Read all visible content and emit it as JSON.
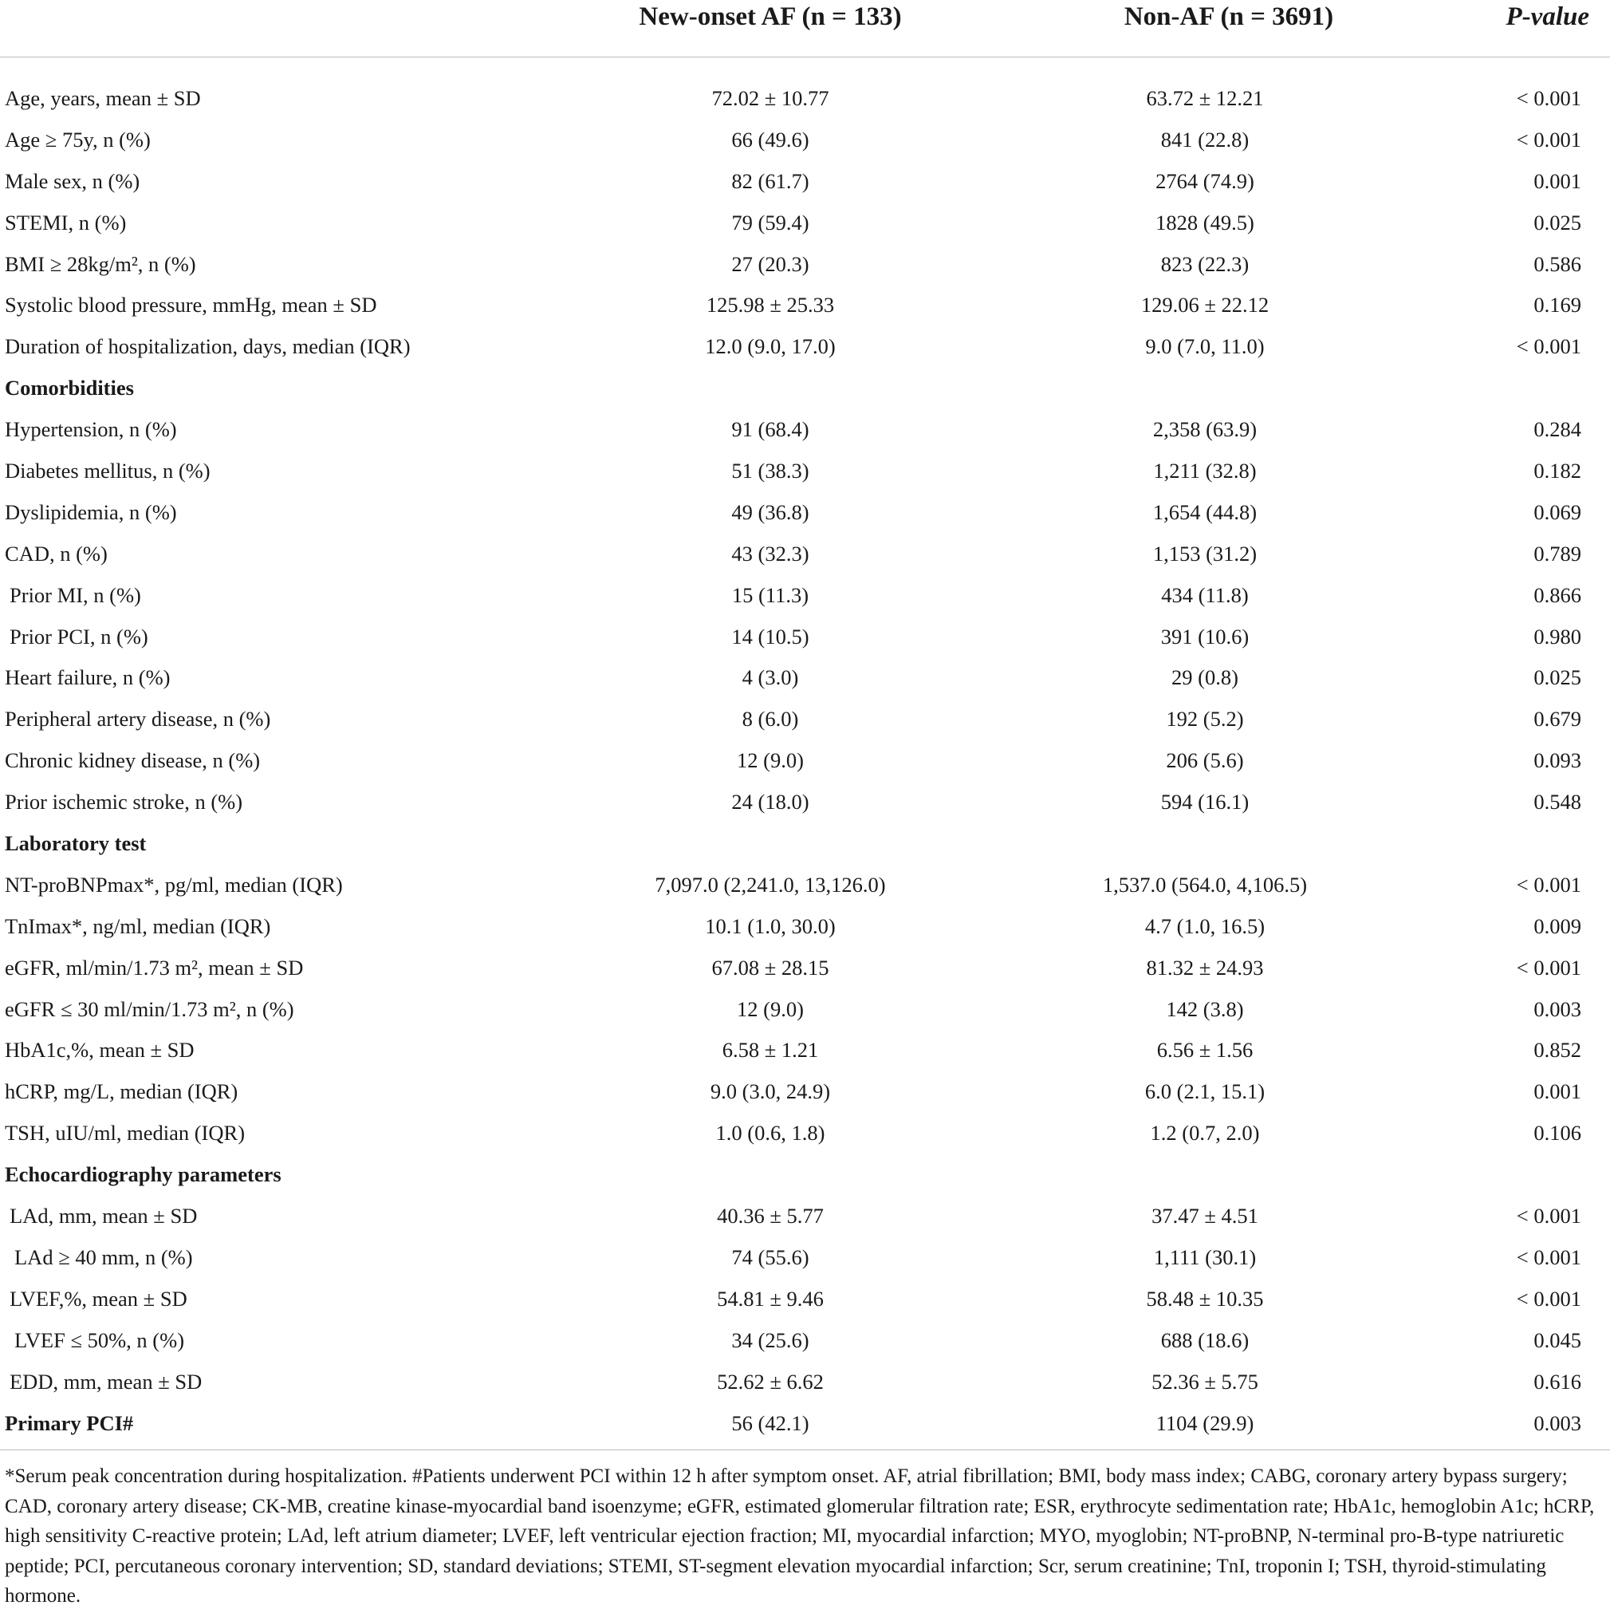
{
  "header": {
    "col_af": "New-onset AF (n = 133)",
    "col_non": "Non-AF (n = 3691)",
    "col_p": "P-value"
  },
  "rows": [
    {
      "label": "Age, years, mean ± SD",
      "af": "72.02 ± 10.77",
      "non": "63.72 ± 12.21",
      "p": "< 0.001"
    },
    {
      "label": "Age ≥ 75y, n (%)",
      "af": "66 (49.6)",
      "non": "841 (22.8)",
      "p": "< 0.001"
    },
    {
      "label": "Male sex, n (%)",
      "af": "82 (61.7)",
      "non": "2764 (74.9)",
      "p": "0.001"
    },
    {
      "label": "STEMI, n (%)",
      "af": "79 (59.4)",
      "non": "1828 (49.5)",
      "p": "0.025"
    },
    {
      "label": "BMI ≥ 28kg/m², n (%)",
      "af": "27 (20.3)",
      "non": "823 (22.3)",
      "p": "0.586"
    },
    {
      "label": "Systolic blood pressure, mmHg, mean ± SD",
      "af": "125.98 ± 25.33",
      "non": "129.06 ± 22.12",
      "p": "0.169"
    },
    {
      "label": "Duration of hospitalization, days, median (IQR)",
      "af": "12.0 (9.0, 17.0)",
      "non": "9.0 (7.0, 11.0)",
      "p": "< 0.001"
    },
    {
      "label": "Comorbidities",
      "af": "",
      "non": "",
      "p": "",
      "section": true
    },
    {
      "label": "Hypertension, n (%)",
      "af": "91 (68.4)",
      "non": "2,358 (63.9)",
      "p": "0.284"
    },
    {
      "label": "Diabetes mellitus, n (%)",
      "af": "51 (38.3)",
      "non": "1,211 (32.8)",
      "p": "0.182"
    },
    {
      "label": "Dyslipidemia, n (%)",
      "af": "49 (36.8)",
      "non": "1,654 (44.8)",
      "p": "0.069"
    },
    {
      "label": "CAD, n (%)",
      "af": "43 (32.3)",
      "non": "1,153 (31.2)",
      "p": "0.789"
    },
    {
      "label": "Prior MI, n (%)",
      "af": "15 (11.3)",
      "non": "434 (11.8)",
      "p": "0.866",
      "indent": 1
    },
    {
      "label": "Prior PCI, n (%)",
      "af": "14 (10.5)",
      "non": "391 (10.6)",
      "p": "0.980",
      "indent": 1
    },
    {
      "label": "Heart failure, n (%)",
      "af": "4 (3.0)",
      "non": "29 (0.8)",
      "p": "0.025"
    },
    {
      "label": "Peripheral artery disease, n (%)",
      "af": "8 (6.0)",
      "non": "192 (5.2)",
      "p": "0.679"
    },
    {
      "label": "Chronic kidney disease, n (%)",
      "af": "12 (9.0)",
      "non": "206 (5.6)",
      "p": "0.093"
    },
    {
      "label": "Prior ischemic stroke, n (%)",
      "af": "24 (18.0)",
      "non": "594 (16.1)",
      "p": "0.548"
    },
    {
      "label": "Laboratory test",
      "af": "",
      "non": "",
      "p": "",
      "section": true
    },
    {
      "label": "NT-proBNPmax*, pg/ml, median (IQR)",
      "af": "7,097.0 (2,241.0, 13,126.0)",
      "non": "1,537.0 (564.0, 4,106.5)",
      "p": "< 0.001"
    },
    {
      "label": "TnImax*, ng/ml, median (IQR)",
      "af": "10.1 (1.0, 30.0)",
      "non": "4.7 (1.0, 16.5)",
      "p": "0.009"
    },
    {
      "label": "eGFR, ml/min/1.73 m², mean ± SD",
      "af": "67.08 ± 28.15",
      "non": "81.32 ± 24.93",
      "p": "< 0.001"
    },
    {
      "label": "eGFR ≤ 30 ml/min/1.73 m², n (%)",
      "af": "12 (9.0)",
      "non": "142 (3.8)",
      "p": "0.003"
    },
    {
      "label": "HbA1c,%, mean ± SD",
      "af": "6.58 ± 1.21",
      "non": "6.56 ± 1.56",
      "p": "0.852"
    },
    {
      "label": "hCRP, mg/L, median (IQR)",
      "af": "9.0 (3.0, 24.9)",
      "non": "6.0 (2.1, 15.1)",
      "p": "0.001"
    },
    {
      "label": "TSH, uIU/ml, median (IQR)",
      "af": "1.0 (0.6, 1.8)",
      "non": "1.2 (0.7, 2.0)",
      "p": "0.106"
    },
    {
      "label": "Echocardiography parameters",
      "af": "",
      "non": "",
      "p": "",
      "section": true
    },
    {
      "label": "LAd, mm, mean ± SD",
      "af": "40.36 ± 5.77",
      "non": "37.47 ± 4.51",
      "p": "< 0.001",
      "indent": 1
    },
    {
      "label": "LAd ≥ 40 mm, n (%)",
      "af": "74 (55.6)",
      "non": "1,111 (30.1)",
      "p": "< 0.001",
      "indent": 2
    },
    {
      "label": "LVEF,%, mean ± SD",
      "af": "54.81 ± 9.46",
      "non": "58.48 ± 10.35",
      "p": "< 0.001",
      "indent": 1
    },
    {
      "label": "LVEF ≤ 50%, n (%)",
      "af": "34 (25.6)",
      "non": "688 (18.6)",
      "p": "0.045",
      "indent": 2
    },
    {
      "label": "EDD, mm, mean ± SD",
      "af": "52.62 ± 6.62",
      "non": "52.36 ± 5.75",
      "p": "0.616",
      "indent": 1
    },
    {
      "label": "Primary PCI#",
      "af": "56 (42.1)",
      "non": "1104 (29.9)",
      "p": "0.003",
      "section": true
    }
  ],
  "footnote": "*Serum peak concentration during hospitalization. #Patients underwent PCI within 12 h after symptom onset. AF, atrial fibrillation; BMI, body mass index; CABG, coronary artery bypass surgery; CAD, coronary artery disease; CK-MB, creatine kinase-myocardial band isoenzyme; eGFR, estimated glomerular filtration rate; ESR, erythrocyte sedimentation rate; HbA1c, hemoglobin A1c; hCRP, high sensitivity C-reactive protein; LAd, left atrium diameter; LVEF, left ventricular ejection fraction; MI, myocardial infarction; MYO, myoglobin; NT-proBNP, N-terminal pro-B-type natriuretic peptide; PCI, percutaneous coronary intervention; SD, standard deviations; STEMI, ST-segment elevation myocardial infarction; Scr, serum creatinine; TnI, troponin I; TSH, thyroid-stimulating hormone."
}
